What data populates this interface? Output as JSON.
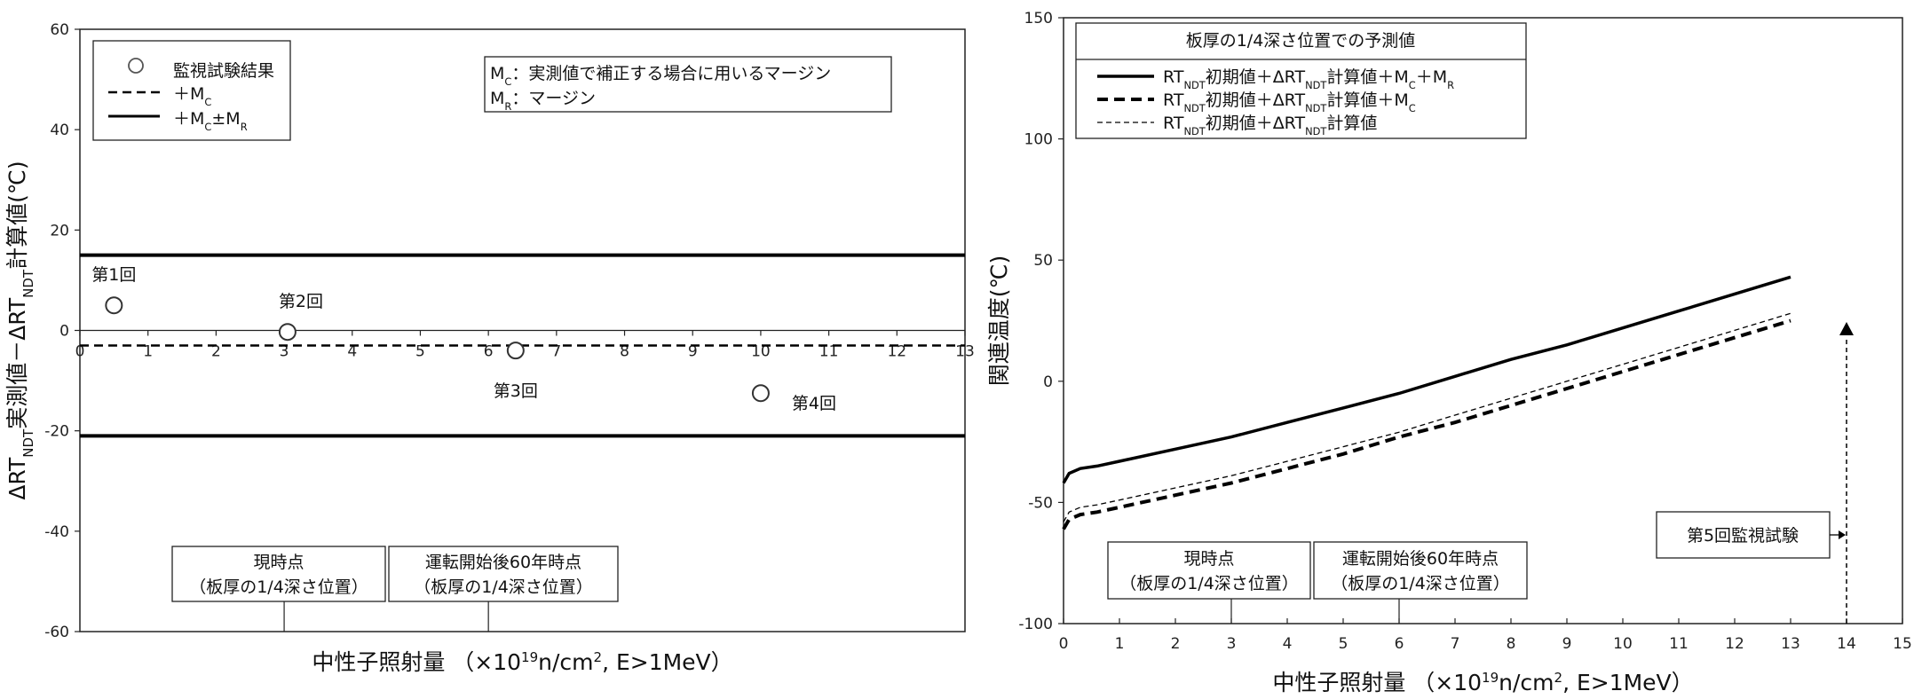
{
  "chart_data": [
    {
      "type": "scatter",
      "xlabel_main": "中性子照射量",
      "xlabel_unit_pre": "（×10",
      "xlabel_unit_sup": "19",
      "xlabel_unit_mid": "n/cm",
      "xlabel_unit_sup2": "2",
      "xlabel_unit_post": ", E>1MeV）",
      "ylabel_pre": "ΔRT",
      "ylabel_sub1": "NDT",
      "ylabel_mid": "実測値－ΔRT",
      "ylabel_sub2": "NDT",
      "ylabel_post": "計算値(℃)",
      "xlim": [
        0,
        13
      ],
      "ylim": [
        -60,
        60
      ],
      "xticks": [
        0,
        1,
        2,
        3,
        4,
        5,
        6,
        7,
        8,
        9,
        10,
        11,
        12,
        13
      ],
      "yticks": [
        60,
        40,
        20,
        0,
        -20,
        -40,
        -60
      ],
      "points": [
        {
          "x": 0.5,
          "y": 5,
          "label": "第1回"
        },
        {
          "x": 3.05,
          "y": -0.3,
          "label": "第2回"
        },
        {
          "x": 6.4,
          "y": -4,
          "label": "第3回"
        },
        {
          "x": 10,
          "y": -12.5,
          "label": "第4回"
        }
      ],
      "lines": {
        "mc": -3,
        "upper": 15,
        "lower": -21
      },
      "legend": {
        "points": "監視試験結果",
        "mc_pre": "＋M",
        "mc_sub": "C",
        "mr_pre": "＋M",
        "mr_sub1": "C",
        "mr_mid": "±M",
        "mr_sub2": "R"
      },
      "note": {
        "l1_pre": "M",
        "l1_sub": "C",
        "l1_text": "：実測値で補正する場合に用いるマージン",
        "l2_pre": "M",
        "l2_sub": "R",
        "l2_text": "：マージン"
      },
      "markers": [
        {
          "x": 3,
          "line1": "現時点",
          "line2": "（板厚の1/4深さ位置）"
        },
        {
          "x": 6,
          "line1": "運転開始後60年時点",
          "line2": "（板厚の1/4深さ位置）"
        }
      ]
    },
    {
      "type": "line",
      "xlabel_main": "中性子照射量",
      "xlabel_unit_pre": "（×10",
      "xlabel_unit_sup": "19",
      "xlabel_unit_mid": "n/cm",
      "xlabel_unit_sup2": "2",
      "xlabel_unit_post": ", E>1MeV）",
      "ylabel": "関連温度(℃)",
      "xlim": [
        0,
        15
      ],
      "ylim": [
        -100,
        150
      ],
      "xticks": [
        0,
        1,
        2,
        3,
        4,
        5,
        6,
        7,
        8,
        9,
        10,
        11,
        12,
        13,
        14,
        15
      ],
      "yticks": [
        150,
        100,
        50,
        0,
        -50,
        -100
      ],
      "legend_title": "板厚の1/4深さ位置での予測値",
      "series": [
        {
          "name_pre": "RT",
          "name_sub1": "NDT",
          "name_mid": "初期値＋ΔRT",
          "name_sub2": "NDT",
          "name_tail": "計算値＋M",
          "name_sub3": "C",
          "name_tail2": "＋M",
          "name_sub4": "R",
          "x": [
            0,
            0.1,
            0.3,
            0.6,
            1,
            2,
            3,
            4,
            5,
            6,
            7,
            8,
            9,
            10,
            11,
            12,
            13
          ],
          "y": [
            -42,
            -38,
            -36,
            -35,
            -33,
            -28,
            -23,
            -17,
            -11,
            -5,
            2,
            9,
            15,
            22,
            29,
            36,
            43
          ]
        },
        {
          "name_pre": "RT",
          "name_sub1": "NDT",
          "name_mid": "初期値＋ΔRT",
          "name_sub2": "NDT",
          "name_tail": "計算値＋M",
          "name_sub3": "C",
          "name_tail2": "",
          "name_sub4": "",
          "x": [
            0,
            0.1,
            0.3,
            0.6,
            1,
            2,
            3,
            4,
            5,
            6,
            7,
            8,
            9,
            10,
            11,
            12,
            13
          ],
          "y": [
            -61,
            -57,
            -55,
            -54,
            -52,
            -47,
            -42,
            -36,
            -30,
            -23,
            -17,
            -10,
            -3,
            4,
            11,
            18,
            25
          ]
        },
        {
          "name_pre": "RT",
          "name_sub1": "NDT",
          "name_mid": "初期値＋ΔRT",
          "name_sub2": "NDT",
          "name_tail": "計算値",
          "name_sub3": "",
          "name_tail2": "",
          "name_sub4": "",
          "x": [
            0,
            0.1,
            0.3,
            0.6,
            1,
            2,
            3,
            4,
            5,
            6,
            7,
            8,
            9,
            10,
            11,
            12,
            13
          ],
          "y": [
            -58,
            -54,
            -52,
            -51,
            -49,
            -44,
            -39,
            -33,
            -27,
            -21,
            -14,
            -7,
            0,
            7,
            14,
            21,
            28
          ]
        }
      ],
      "markers": [
        {
          "x": 3,
          "line1": "現時点",
          "line2": "（板厚の1/4深さ位置）"
        },
        {
          "x": 6,
          "line1": "運転開始後60年時点",
          "line2": "（板厚の1/4深さ位置）"
        }
      ],
      "arrow": {
        "x": 14,
        "label": "第5回監視試験"
      }
    }
  ]
}
